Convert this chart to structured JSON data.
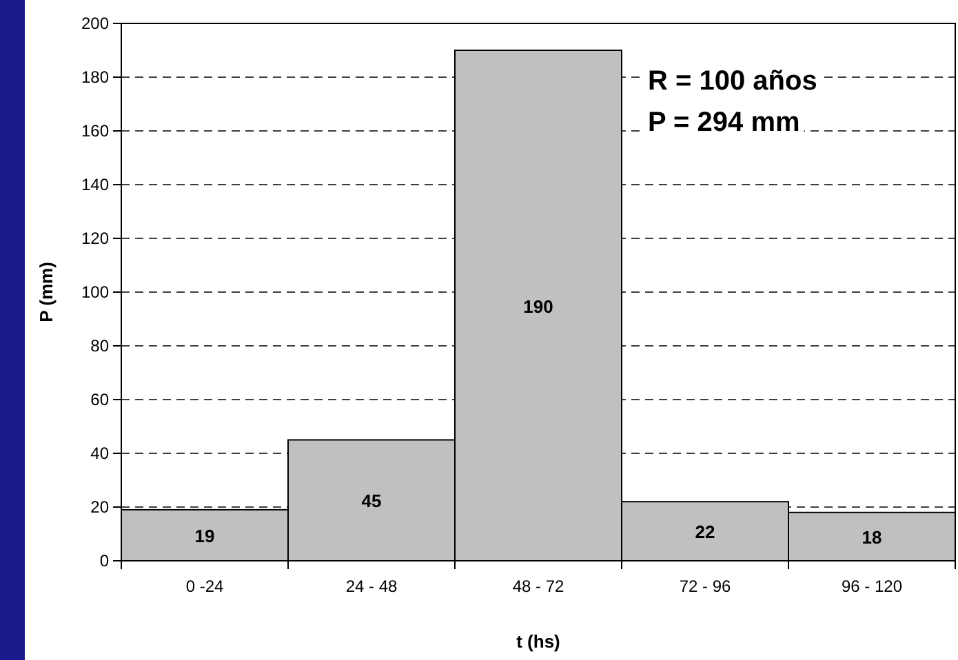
{
  "chart_data": {
    "type": "bar",
    "xlabel": "t (hs)",
    "ylabel": "P (mm)",
    "categories": [
      "0 -24",
      "24 - 48",
      "48 - 72",
      "72 - 96",
      "96 - 120"
    ],
    "values": [
      19,
      45,
      190,
      22,
      18
    ],
    "color": "#c0c0c0",
    "ylim": [
      0,
      200
    ],
    "yticks": [
      0,
      20,
      40,
      60,
      80,
      100,
      120,
      140,
      160,
      180,
      200
    ],
    "grid": "y",
    "data_labels": true,
    "annotations": [
      "R = 100 años",
      "P = 294 mm"
    ]
  }
}
